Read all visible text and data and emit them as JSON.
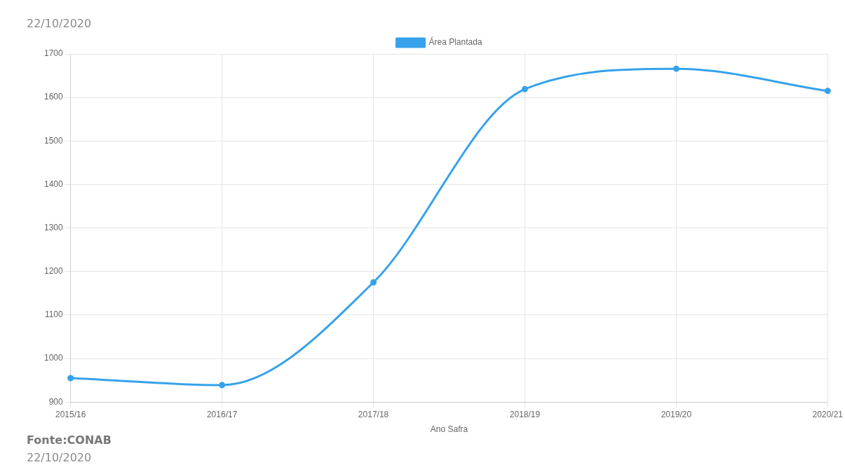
{
  "chart_data": {
    "type": "line",
    "categories": [
      "2015/16",
      "2016/17",
      "2017/18",
      "2018/19",
      "2019/20",
      "2020/21"
    ],
    "series": [
      {
        "name": "Área Plantada",
        "color": "#36a2eb",
        "values": [
          955,
          939,
          1175,
          1619,
          1666,
          1615
        ]
      }
    ],
    "xlabel": "Ano Safra",
    "ylim": [
      900,
      1700
    ],
    "yticks": [
      900,
      1000,
      1100,
      1200,
      1300,
      1400,
      1500,
      1600,
      1700
    ],
    "grid": true,
    "legend": "top",
    "marker": "circle",
    "line_style": "solid",
    "annotations": [
      "22/10/2020",
      "Fonte:CONAB",
      "22/10/2020"
    ]
  }
}
